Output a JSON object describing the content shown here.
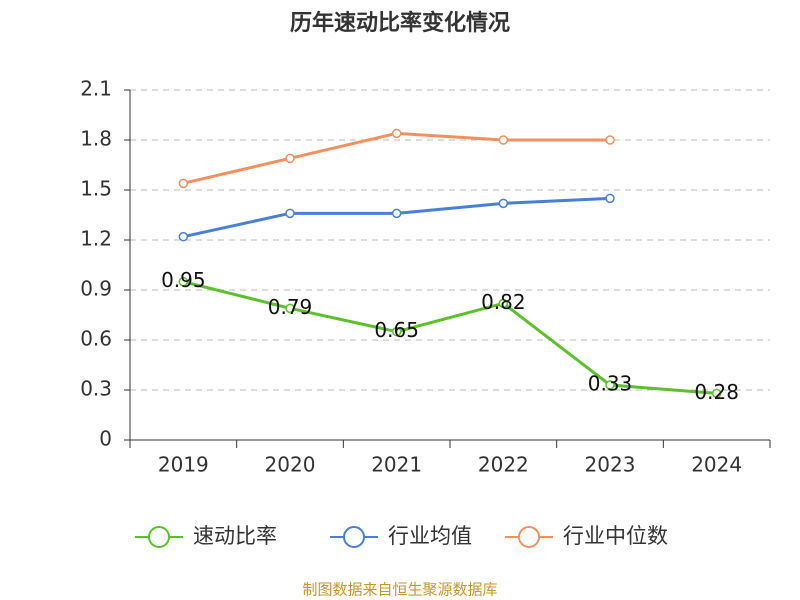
{
  "chart_data": {
    "type": "line",
    "title": "历年速动比率变化情况",
    "categories": [
      "2019",
      "2020",
      "2021",
      "2022",
      "2023",
      "2024"
    ],
    "series": [
      {
        "name": "速动比率",
        "color": "#5cc02a",
        "values": [
          0.95,
          0.79,
          0.65,
          0.82,
          0.33,
          0.28
        ],
        "data_labels": true
      },
      {
        "name": "行业均值",
        "color": "#4a7fd8",
        "values": [
          1.22,
          1.36,
          1.36,
          1.42,
          1.45,
          null
        ]
      },
      {
        "name": "行业中位数",
        "color": "#f39060",
        "values": [
          1.54,
          1.69,
          1.84,
          1.8,
          1.8,
          null
        ]
      }
    ],
    "ylim": [
      0,
      2.1
    ],
    "yticks": [
      0,
      0.3,
      0.6,
      0.9,
      1.2,
      1.5,
      1.8,
      2.1
    ],
    "grid": true,
    "legend": "bottom",
    "source": "制图数据来自恒生聚源数据库"
  }
}
